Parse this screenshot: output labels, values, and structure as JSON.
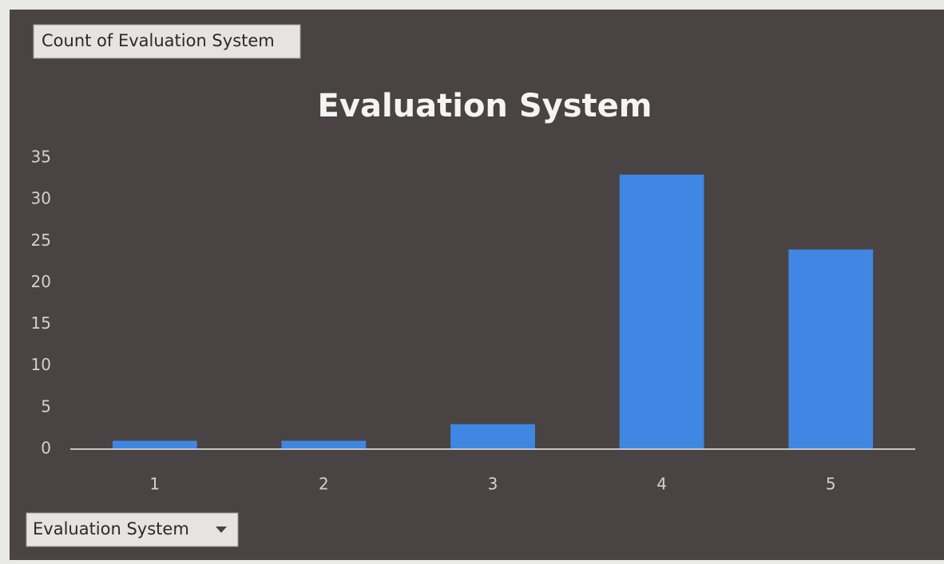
{
  "chart_data": {
    "type": "bar",
    "title": "Evaluation System",
    "value_field": "Count of Evaluation System",
    "axis_field": "Evaluation System",
    "categories": [
      "1",
      "2",
      "3",
      "4",
      "5"
    ],
    "values": [
      1,
      1,
      3,
      33,
      24
    ],
    "color": "#3f87e2",
    "ylim": [
      0,
      35
    ],
    "yticks": [
      0,
      5,
      10,
      15,
      20,
      25,
      30,
      35
    ],
    "grid": false
  }
}
